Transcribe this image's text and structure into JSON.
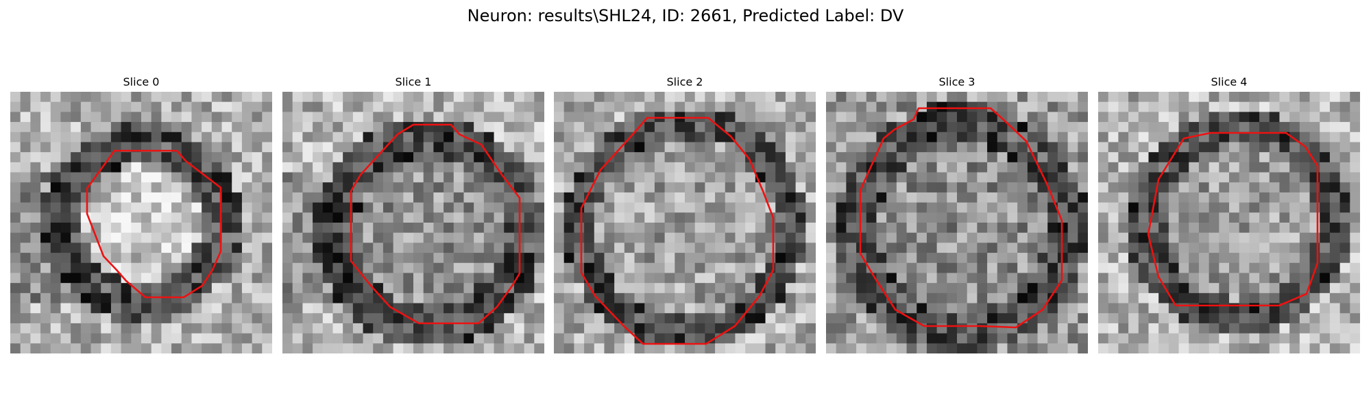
{
  "figure": {
    "title": "Neuron: results\\SHL24, ID: 2661, Predicted Label: DV"
  },
  "slices": [
    {
      "title": "Slice 0"
    },
    {
      "title": "Slice 1"
    },
    {
      "title": "Slice 2"
    },
    {
      "title": "Slice 3"
    },
    {
      "title": "Slice 4"
    }
  ],
  "colors": {
    "contour": "#ee1111",
    "background": "#ffffff"
  }
}
